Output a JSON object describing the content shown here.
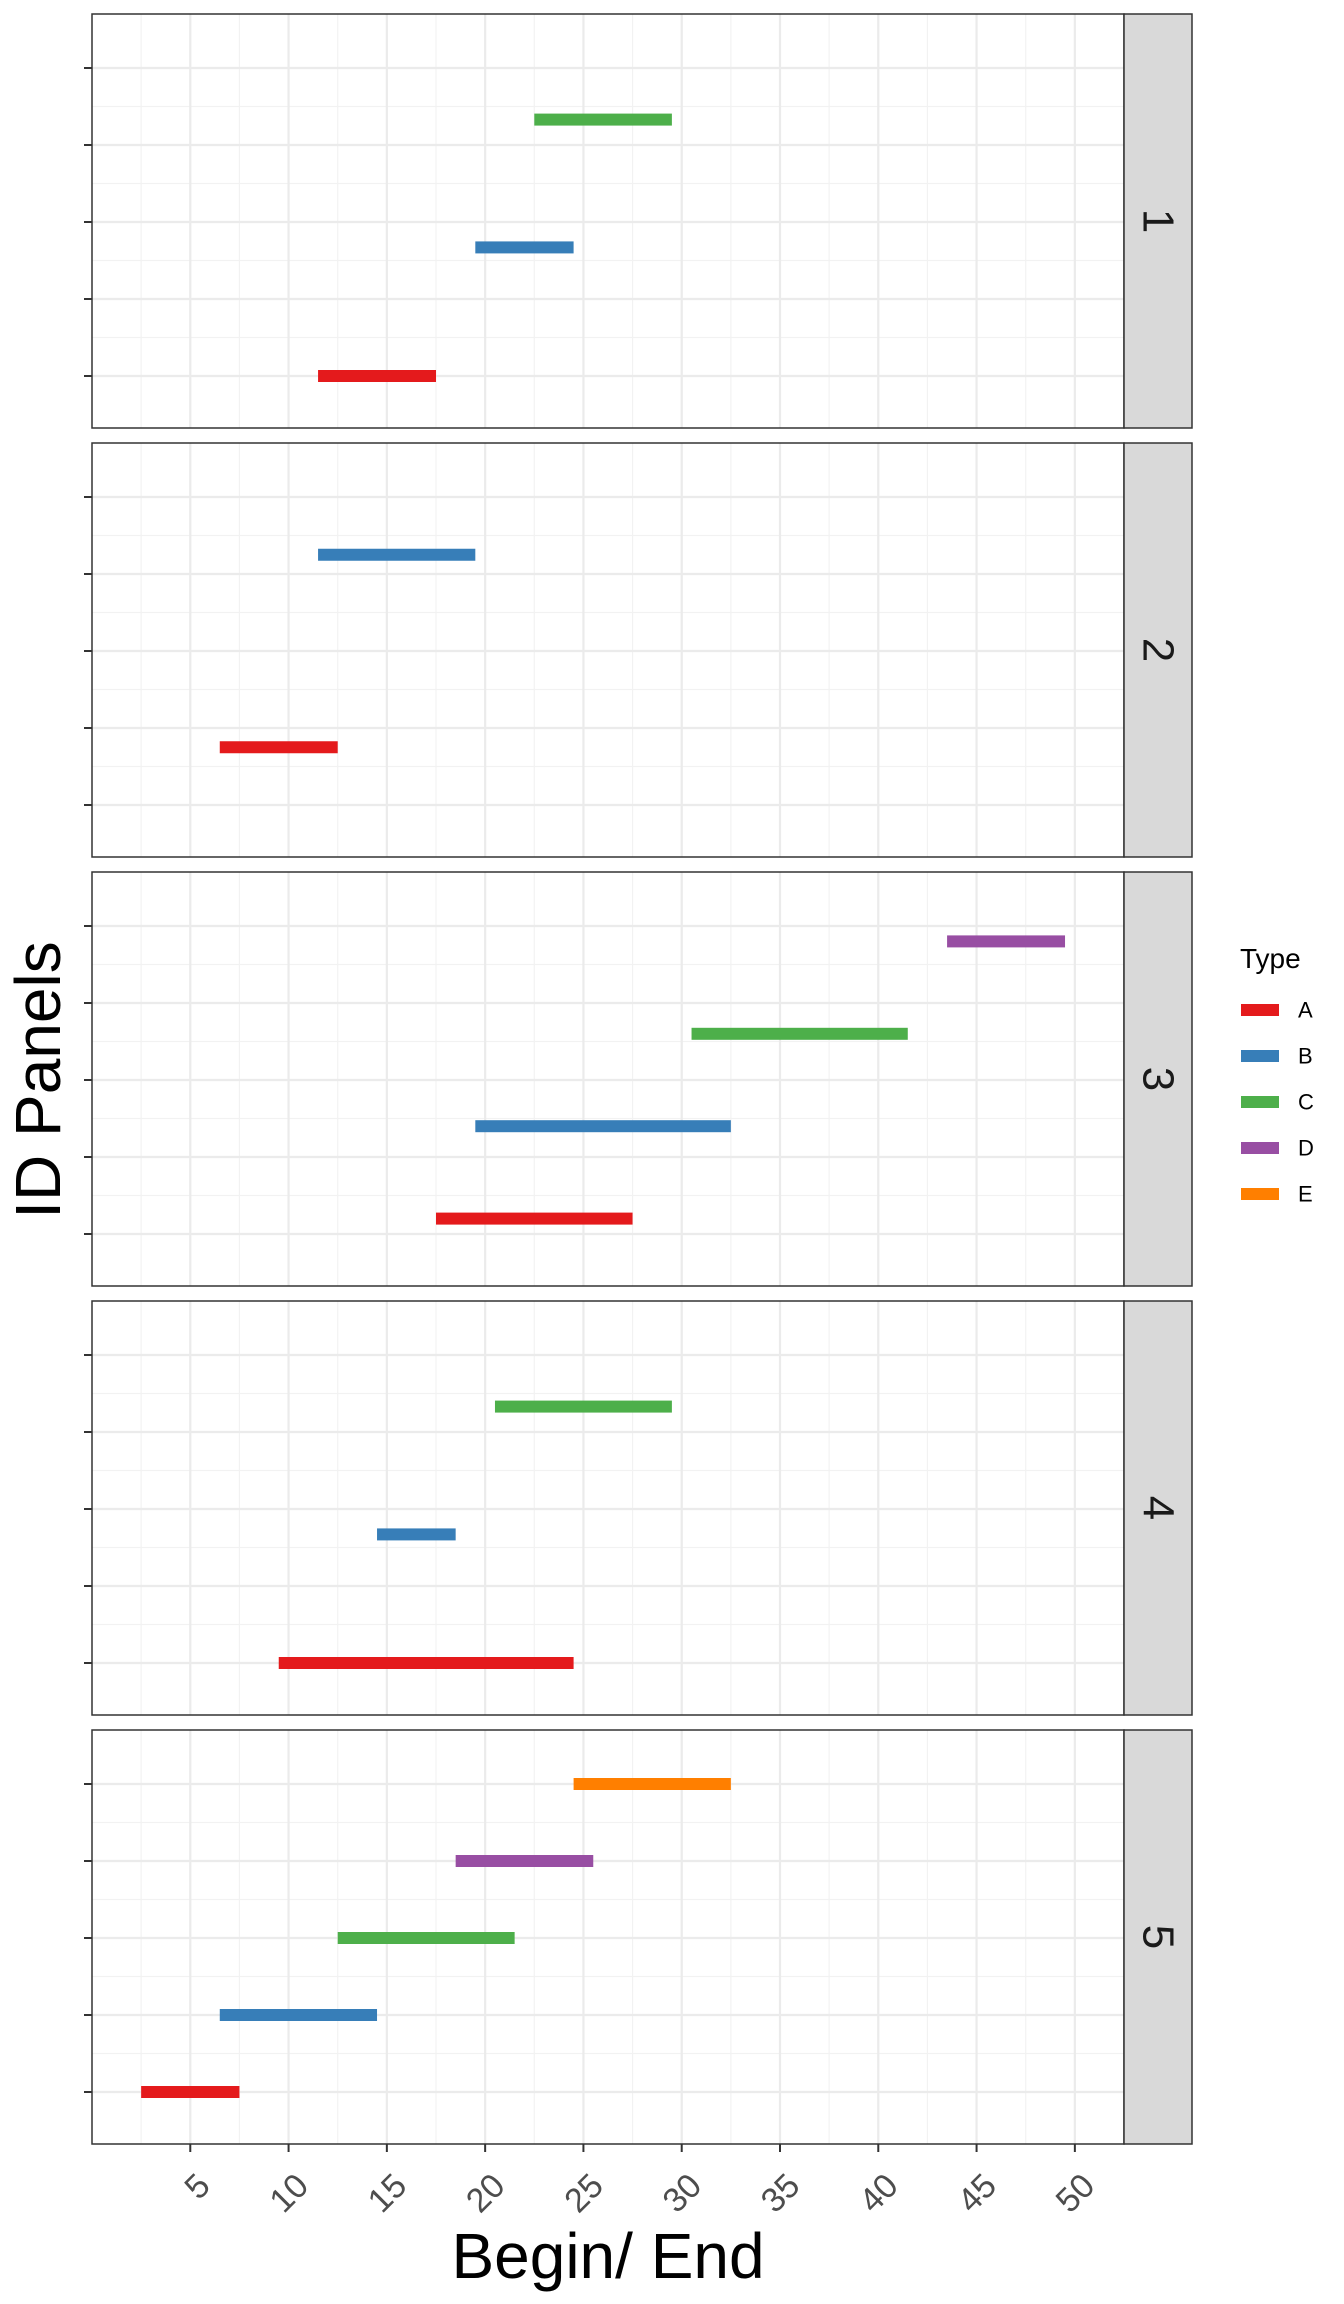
{
  "chart_data": {
    "type": "gantt",
    "xlabel": "Begin/ End",
    "ylabel": "ID Panels",
    "xlim": [
      0,
      52.5
    ],
    "x_ticks": [
      5,
      10,
      15,
      20,
      25,
      30,
      35,
      40,
      45,
      50
    ],
    "legend": {
      "title": "Type",
      "position": "right",
      "entries": [
        {
          "label": "A",
          "color": "#E41A1C"
        },
        {
          "label": "B",
          "color": "#377EB8"
        },
        {
          "label": "C",
          "color": "#4DAF4A"
        },
        {
          "label": "D",
          "color": "#984EA3"
        },
        {
          "label": "E",
          "color": "#FF7F00"
        }
      ]
    },
    "grid": true,
    "panels": [
      {
        "label": "1",
        "segments": [
          {
            "type": "A",
            "begin": 11.5,
            "end": 17.5,
            "level": 1
          },
          {
            "type": "B",
            "begin": 19.5,
            "end": 24.5,
            "level": 2.67
          },
          {
            "type": "C",
            "begin": 22.5,
            "end": 29.5,
            "level": 4.33
          }
        ]
      },
      {
        "label": "2",
        "segments": [
          {
            "type": "A",
            "begin": 6.5,
            "end": 12.5,
            "level": 1.75
          },
          {
            "type": "B",
            "begin": 11.5,
            "end": 19.5,
            "level": 4.25
          }
        ]
      },
      {
        "label": "3",
        "segments": [
          {
            "type": "A",
            "begin": 17.5,
            "end": 27.5,
            "level": 1.2
          },
          {
            "type": "B",
            "begin": 19.5,
            "end": 32.5,
            "level": 2.4
          },
          {
            "type": "C",
            "begin": 30.5,
            "end": 41.5,
            "level": 3.6
          },
          {
            "type": "D",
            "begin": 43.5,
            "end": 49.5,
            "level": 4.8
          }
        ]
      },
      {
        "label": "4",
        "segments": [
          {
            "type": "A",
            "begin": 9.5,
            "end": 24.5,
            "level": 1
          },
          {
            "type": "B",
            "begin": 14.5,
            "end": 18.5,
            "level": 2.67
          },
          {
            "type": "C",
            "begin": 20.5,
            "end": 29.5,
            "level": 4.33
          }
        ]
      },
      {
        "label": "5",
        "segments": [
          {
            "type": "A",
            "begin": 2.5,
            "end": 7.5,
            "level": 1
          },
          {
            "type": "B",
            "begin": 6.5,
            "end": 14.5,
            "level": 2
          },
          {
            "type": "C",
            "begin": 12.5,
            "end": 21.5,
            "level": 3
          },
          {
            "type": "D",
            "begin": 18.5,
            "end": 25.5,
            "level": 4
          },
          {
            "type": "E",
            "begin": 24.5,
            "end": 32.5,
            "level": 5
          }
        ]
      }
    ]
  }
}
